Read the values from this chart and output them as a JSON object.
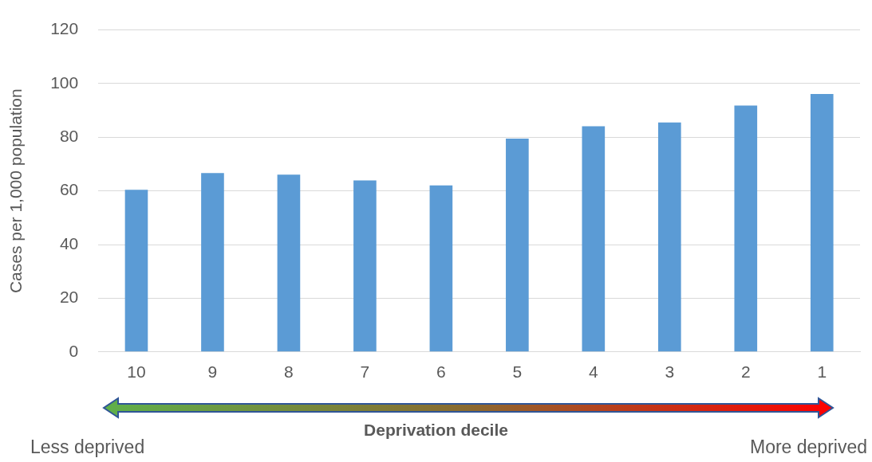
{
  "chart_data": {
    "type": "bar",
    "xlabel": "Deprivation decile",
    "ylabel": "Cases per 1,000 population",
    "categories": [
      "10",
      "9",
      "8",
      "7",
      "6",
      "5",
      "4",
      "3",
      "2",
      "1"
    ],
    "values": [
      60.4,
      66.7,
      66.1,
      63.9,
      62.1,
      79.5,
      84.1,
      85.5,
      91.8,
      96.1
    ],
    "color": "#5b9bd5",
    "ylim": [
      0,
      120
    ],
    "yticks": [
      0,
      20,
      40,
      60,
      80,
      100,
      120
    ],
    "grid": "y",
    "legend": false,
    "annotations": [
      "Less deprived",
      "More deprived"
    ]
  }
}
